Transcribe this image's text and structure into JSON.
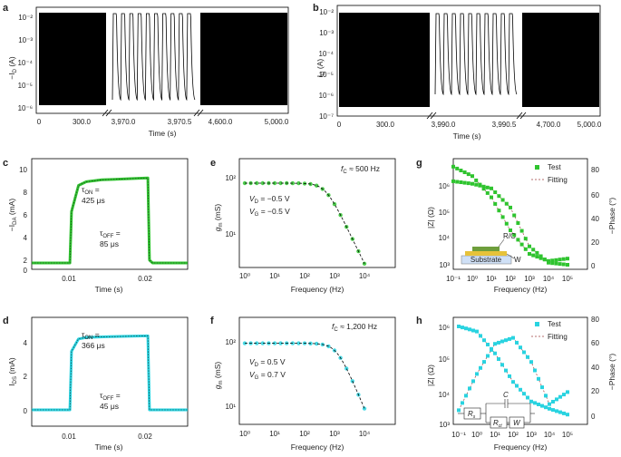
{
  "panels": {
    "a": {
      "letter": "a",
      "ylabel": "−I",
      "ysub": "D",
      "yunit": " (A)",
      "yticks": [
        "10⁻²",
        "10⁻³",
        "10⁻⁴",
        "10⁻⁵",
        "10⁻⁶"
      ],
      "xticks": [
        "0",
        "300.0",
        "3,970.0",
        "3,970.5",
        "4,600.0",
        "5,000.0"
      ],
      "xlabel": "Time (s)"
    },
    "b": {
      "letter": "b",
      "ylabel": "I",
      "ysub": "D",
      "yunit": " (A)",
      "yticks": [
        "10⁻²",
        "10⁻³",
        "10⁻⁴",
        "10⁻⁵",
        "10⁻⁶",
        "10⁻⁷"
      ],
      "xticks": [
        "0",
        "300.0",
        "3,990.0",
        "3,990.5",
        "4,700.0",
        "5,000.0"
      ],
      "xlabel": "Time (s)"
    },
    "c": {
      "letter": "c",
      "ylabel": "−I",
      "ysub": "DA",
      "yunit": " (mA)",
      "xlabel": "Time (s)",
      "tau_on": "425 μs",
      "tau_off": "85 μs"
    },
    "d": {
      "letter": "d",
      "ylabel": "I",
      "ysub": "DS",
      "yunit": " (mA)",
      "xlabel": "Time (s)",
      "tau_on": "366 μs",
      "tau_off": "45 μs"
    },
    "e": {
      "letter": "e",
      "fc": "≈ 500 Hz",
      "vd": "−0.5 V",
      "vg": "−0.5 V",
      "xlabel": "Frequency (Hz)",
      "ylabel": " (mS)"
    },
    "f": {
      "letter": "f",
      "fc": "≈ 1,200 Hz",
      "vd": "0.5 V",
      "vg": "0.7 V",
      "xlabel": "Frequency (Hz)",
      "ylabel": " (mS)"
    },
    "g": {
      "letter": "g",
      "xlabel": "Frequency (Hz)",
      "ylabel_left": "|Z| (Ω)",
      "ylabel_right": "−Phase (°)",
      "legend_test": "Test",
      "legend_fit": "Fitting",
      "inset_ric": "R/C",
      "inset_w": "W",
      "inset_sub": "Substrate"
    },
    "h": {
      "letter": "h",
      "xlabel": "Frequency (Hz)",
      "ylabel_left": "|Z| (Ω)",
      "ylabel_right": "−Phase (°)",
      "legend_test": "Test",
      "legend_fit": "Fitting",
      "circ_rs": "R",
      "circ_rs_sub": "s",
      "circ_c": "C",
      "circ_rct": "R",
      "circ_rct_sub": "ct",
      "circ_w": "W"
    }
  },
  "colors": {
    "green": "#2fc42f",
    "cyan": "#29d3e0",
    "black": "#000000",
    "fit": "#a04040"
  },
  "chart_data": [
    {
      "id": "a",
      "type": "line",
      "title": "",
      "xlabel": "Time (s)",
      "ylabel": "−I_D (A)",
      "yscale": "log",
      "ylim": [
        1e-06,
        0.01
      ],
      "segments": [
        {
          "x_range": [
            0,
            300
          ],
          "state": "dense switching"
        },
        {
          "x_range": [
            3970.0,
            3970.5
          ],
          "state": "10 pulses",
          "low": 1e-05,
          "high": 0.01
        },
        {
          "x_range": [
            4600,
            5000
          ],
          "state": "dense switching"
        }
      ]
    },
    {
      "id": "b",
      "type": "line",
      "xlabel": "Time (s)",
      "ylabel": "I_D (A)",
      "yscale": "log",
      "ylim": [
        1e-07,
        0.01
      ],
      "segments": [
        {
          "x_range": [
            0,
            300
          ],
          "state": "dense switching"
        },
        {
          "x_range": [
            3990.0,
            3990.5
          ],
          "state": "10 pulses",
          "low": 1e-06,
          "high": 0.01
        },
        {
          "x_range": [
            4700,
            5000
          ],
          "state": "dense switching"
        }
      ]
    },
    {
      "id": "c",
      "type": "line",
      "xlabel": "Time (s)",
      "ylabel": "−I_DA (mA)",
      "xlim": [
        0.005,
        0.025
      ],
      "ylim": [
        0,
        10
      ],
      "x": [
        0.005,
        0.0099,
        0.0101,
        0.011,
        0.012,
        0.014,
        0.017,
        0.0199,
        0.0201,
        0.0205,
        0.025
      ],
      "values": [
        0,
        0,
        5.5,
        8.3,
        8.7,
        8.9,
        9.0,
        9.1,
        0.3,
        0,
        0
      ],
      "tau_on_us": 425,
      "tau_off_us": 85
    },
    {
      "id": "d",
      "type": "line",
      "xlabel": "Time (s)",
      "ylabel": "I_DS (mA)",
      "xlim": [
        0.005,
        0.025
      ],
      "ylim": [
        0,
        6
      ],
      "x": [
        0.005,
        0.0099,
        0.0101,
        0.011,
        0.012,
        0.015,
        0.0199,
        0.0201,
        0.025
      ],
      "values": [
        0,
        0,
        3.8,
        4.6,
        4.7,
        4.75,
        4.8,
        0,
        0
      ],
      "tau_on_us": 366,
      "tau_off_us": 45
    },
    {
      "id": "e",
      "type": "line",
      "xlabel": "Frequency (Hz)",
      "ylabel": "g_m (mS)",
      "xscale": "log",
      "yscale": "log",
      "x": [
        1,
        10,
        100,
        300,
        1000,
        2000,
        5000,
        10000
      ],
      "values": [
        80,
        80,
        79,
        75,
        55,
        30,
        12,
        5
      ],
      "fc_hz": 500
    },
    {
      "id": "f",
      "type": "line",
      "xlabel": "Frequency (Hz)",
      "ylabel": "g_m (mS)",
      "xscale": "log",
      "yscale": "log",
      "x": [
        1,
        10,
        100,
        1000,
        2000,
        5000,
        10000
      ],
      "values": [
        95,
        95,
        94,
        90,
        70,
        30,
        7
      ],
      "fc_hz": 1200
    },
    {
      "id": "g",
      "type": "scatter",
      "xlabel": "Frequency (Hz)",
      "xscale": "log",
      "series": [
        {
          "name": "|Z| (Ω)",
          "x": [
            0.1,
            1,
            10,
            100,
            1000,
            10000,
            100000
          ],
          "values": [
            1500000,
            1200000,
            800000,
            150000,
            5000,
            1200,
            1000
          ]
        },
        {
          "name": "−Phase (°)",
          "x": [
            0.1,
            1,
            10,
            100,
            1000,
            10000,
            100000
          ],
          "values": [
            84,
            76,
            58,
            30,
            10,
            4,
            6
          ]
        }
      ]
    },
    {
      "id": "h",
      "type": "scatter",
      "xlabel": "Frequency (Hz)",
      "xscale": "log",
      "series": [
        {
          "name": "|Z| (Ω)",
          "x": [
            0.1,
            1,
            10,
            100,
            1000,
            10000,
            100000
          ],
          "values": [
            1000000,
            700000,
            150000,
            20000,
            5000,
            3000,
            2000
          ]
        },
        {
          "name": "−Phase (°)",
          "x": [
            0.1,
            1,
            10,
            100,
            1000,
            10000,
            100000
          ],
          "values": [
            5,
            35,
            60,
            65,
            45,
            10,
            20
          ]
        }
      ]
    }
  ]
}
